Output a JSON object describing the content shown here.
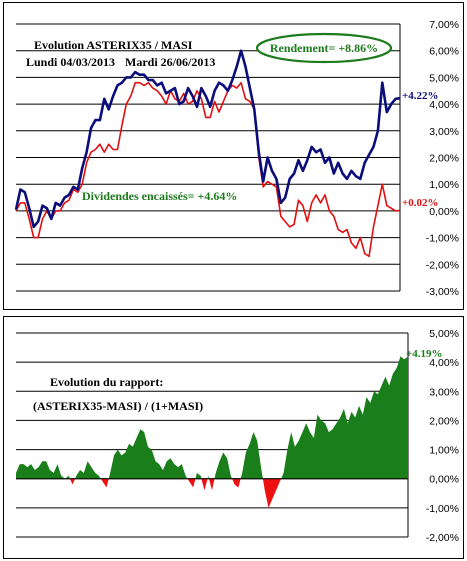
{
  "chart_data": [
    {
      "type": "line",
      "title": "Evolution ASTERIX35 / MASI",
      "subtitle_start": "Lundi 04/03/2013",
      "subtitle_end": "Mardi 26/06/2013",
      "rendement_label": "Rendement= +8.86%",
      "dividendes_label": "Dividendes encaissés= +4.64%",
      "ylim": [
        -3,
        7
      ],
      "yticks": [
        7,
        6,
        5,
        4,
        3,
        2,
        1,
        0,
        -1,
        -2,
        -3
      ],
      "ytick_labels": [
        "7,00%",
        "6,00%",
        "5,00%",
        "4,00%",
        "3,00%",
        "2,00%",
        "1,00%",
        "0,00%",
        "-1,00%",
        "-2,00%",
        "-3,00%"
      ],
      "grid": true,
      "colors": {
        "series_1": "#0b0d7a",
        "series_2": "#e01010",
        "rendement_text": "#1e7b1e",
        "rendement_border": "#1e7b1e",
        "dividendes_text": "#1e7b1e",
        "end_label_1": "#0b0d7a",
        "end_label_2": "#e01010"
      },
      "series": [
        {
          "end_label": "+4.22%",
          "values": [
            0.05,
            0.8,
            0.7,
            0.1,
            -0.6,
            -0.4,
            0.2,
            0.1,
            -0.3,
            0.3,
            0.2,
            0.5,
            0.6,
            0.9,
            0.8,
            1.6,
            2.2,
            3.1,
            3.4,
            3.4,
            4.2,
            3.8,
            4.3,
            4.7,
            4.8,
            5.0,
            5.0,
            5.2,
            5.1,
            5.1,
            4.9,
            4.9,
            4.7,
            4.8,
            4.4,
            4.5,
            4.6,
            4.0,
            4.1,
            4.6,
            4.3,
            3.9,
            4.6,
            4.3,
            3.9,
            4.5,
            4.8,
            4.7,
            4.5,
            4.9,
            5.4,
            6.0,
            5.4,
            4.6,
            3.8,
            2.2,
            1.1,
            2.0,
            1.5,
            1.2,
            0.3,
            0.5,
            1.2,
            1.4,
            1.9,
            1.5,
            1.9,
            2.4,
            2.2,
            2.3,
            1.8,
            2.0,
            1.4,
            1.8,
            1.4,
            1.2,
            1.5,
            1.3,
            1.2,
            1.8,
            2.1,
            2.4,
            3.0,
            4.8,
            3.7,
            4.0,
            4.2,
            4.22
          ]
        },
        {
          "end_label": "+0.02%",
          "values": [
            0.0,
            0.3,
            0.3,
            -0.3,
            -1.0,
            -1.0,
            -0.3,
            0.0,
            -0.3,
            0.0,
            0.0,
            0.3,
            0.4,
            0.8,
            0.7,
            1.0,
            1.8,
            2.2,
            2.3,
            2.5,
            2.2,
            2.5,
            2.3,
            2.3,
            3.2,
            4.0,
            4.3,
            4.8,
            4.8,
            4.7,
            4.8,
            4.6,
            4.5,
            4.3,
            4.0,
            4.5,
            4.2,
            4.1,
            4.4,
            4.0,
            4.1,
            4.5,
            4.2,
            3.5,
            3.5,
            4.1,
            3.7,
            4.1,
            4.5,
            4.7,
            4.6,
            4.8,
            4.2,
            4.1,
            3.8,
            2.0,
            0.9,
            1.1,
            1.0,
            0.9,
            -0.2,
            -0.4,
            -0.6,
            -0.5,
            0.4,
            0.2,
            -0.4,
            0.3,
            0.6,
            0.3,
            0.6,
            0.0,
            -0.2,
            -0.7,
            -0.8,
            -0.7,
            -1.2,
            -1.4,
            -1.0,
            -1.6,
            -1.7,
            -0.6,
            0.2,
            1.0,
            0.2,
            0.1,
            0.0,
            0.02
          ]
        }
      ]
    },
    {
      "type": "area",
      "title_line1": "Evolution du rapport:",
      "title_line2": "(ASTERIX35-MASI) / (1+MASI)",
      "end_label": "+4.19%",
      "ylim": [
        -2,
        5
      ],
      "yticks": [
        5,
        4,
        3,
        2,
        1,
        0,
        -1,
        -2
      ],
      "ytick_labels": [
        "5,00%",
        "4,00%",
        "3,00%",
        "2,00%",
        "1,00%",
        "0,00%",
        "-1,00%",
        "-2,00%"
      ],
      "grid": true,
      "colors": {
        "positive_fill": "#1a7f1a",
        "negative_fill": "#ee1111",
        "end_label": "#1a7f1a"
      },
      "values": [
        0.2,
        0.5,
        0.5,
        0.4,
        0.5,
        0.3,
        0.4,
        0.6,
        0.6,
        0.3,
        0.2,
        0.5,
        0.1,
        0.0,
        0.1,
        -0.2,
        0.1,
        0.3,
        0.2,
        0.6,
        0.4,
        0.2,
        0.1,
        -0.1,
        -0.3,
        0.2,
        0.8,
        1.0,
        0.8,
        0.9,
        1.2,
        1.1,
        1.4,
        1.7,
        1.6,
        1.1,
        1.0,
        0.6,
        0.5,
        0.3,
        0.6,
        0.7,
        0.5,
        0.4,
        0.5,
        0.1,
        -0.1,
        -0.3,
        0.2,
        0.1,
        -0.4,
        0.1,
        -0.4,
        0.2,
        0.6,
        0.9,
        0.7,
        0.1,
        -0.2,
        -0.3,
        0.2,
        0.9,
        1.2,
        1.6,
        1.3,
        0.4,
        -0.4,
        -1.0,
        -0.7,
        -0.4,
        -0.1,
        0.2,
        1.0,
        1.6,
        1.1,
        1.3,
        1.6,
        1.9,
        1.6,
        1.4,
        2.2,
        2.0,
        1.9,
        1.6,
        1.7,
        1.9,
        2.1,
        2.4,
        1.9,
        2.3,
        2.1,
        2.5,
        2.2,
        2.8,
        2.6,
        3.0,
        2.9,
        3.2,
        3.5,
        3.2,
        3.6,
        3.8,
        4.2,
        4.1,
        4.19
      ]
    }
  ]
}
